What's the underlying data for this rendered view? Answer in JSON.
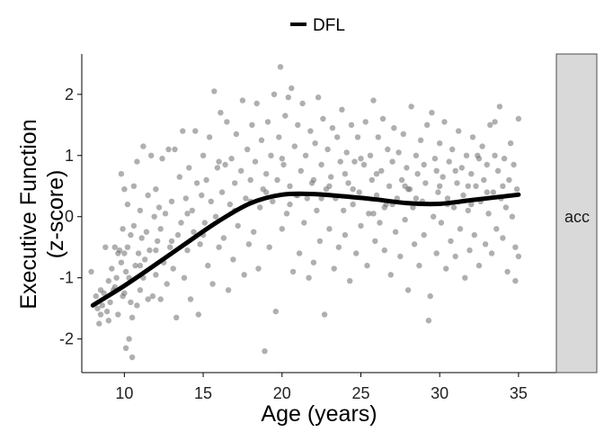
{
  "chart_data": {
    "type": "scatter",
    "xlabel": "Age (years)",
    "ylabel": [
      "Executive Function",
      "(z-score)"
    ],
    "xlim": [
      7.3,
      37.4
    ],
    "ylim": [
      -2.55,
      2.66
    ],
    "x_ticks": [
      10,
      15,
      20,
      25,
      30,
      35
    ],
    "y_ticks": [
      -2,
      -1,
      0,
      1,
      2
    ],
    "grid": false,
    "legend": {
      "position": "top",
      "entries": [
        {
          "name": "DFL",
          "color": "#000000"
        }
      ]
    },
    "facet_label": "acc",
    "colors": {
      "points": "#6e6e6e",
      "fit_line": "#000000",
      "strip_fill": "#d9d9d9",
      "strip_border": "#4d4d4d"
    },
    "fit_line": {
      "name": "DFL",
      "x": [
        8,
        10,
        12,
        14,
        16,
        18,
        20,
        22,
        24,
        26,
        28,
        30,
        32,
        35
      ],
      "y": [
        -1.45,
        -1.13,
        -0.78,
        -0.42,
        -0.07,
        0.22,
        0.36,
        0.37,
        0.33,
        0.28,
        0.22,
        0.21,
        0.27,
        0.36
      ]
    },
    "points": [
      [
        7.9,
        -0.9
      ],
      [
        8.2,
        -1.3
      ],
      [
        8.3,
        -1.5
      ],
      [
        8.4,
        -1.75
      ],
      [
        8.5,
        -1.6
      ],
      [
        8.5,
        -1.2
      ],
      [
        8.6,
        -1.45
      ],
      [
        8.7,
        -1.25
      ],
      [
        8.8,
        -0.5
      ],
      [
        8.9,
        -1.55
      ],
      [
        9.0,
        -1.7
      ],
      [
        9.1,
        -1.4
      ],
      [
        9.2,
        -0.85
      ],
      [
        9.3,
        -1.2
      ],
      [
        9.4,
        -1.15
      ],
      [
        9.4,
        -0.5
      ],
      [
        9.5,
        -1.0
      ],
      [
        9.6,
        -0.6
      ],
      [
        9.6,
        -1.6
      ],
      [
        9.7,
        -0.55
      ],
      [
        9.8,
        0.7
      ],
      [
        9.8,
        -0.75
      ],
      [
        9.9,
        -1.3
      ],
      [
        9.9,
        -0.2
      ],
      [
        10.0,
        0.45
      ],
      [
        10.0,
        -0.6
      ],
      [
        10.1,
        -0.9
      ],
      [
        10.1,
        -2.15
      ],
      [
        10.2,
        0.2
      ],
      [
        10.2,
        -0.5
      ],
      [
        10.3,
        -1.0
      ],
      [
        10.3,
        -2.0
      ],
      [
        10.4,
        -1.4
      ],
      [
        10.4,
        -0.3
      ],
      [
        10.5,
        -2.3
      ],
      [
        10.5,
        -1.65
      ],
      [
        10.6,
        0.5
      ],
      [
        10.6,
        -0.15
      ],
      [
        10.7,
        -0.8
      ],
      [
        10.8,
        -1.45
      ],
      [
        10.8,
        0.9
      ],
      [
        10.9,
        -0.6
      ],
      [
        11.0,
        0.1
      ],
      [
        11.0,
        -1.2
      ],
      [
        11.1,
        -0.35
      ],
      [
        11.2,
        -1.0
      ],
      [
        11.2,
        1.15
      ],
      [
        11.3,
        -0.7
      ],
      [
        11.4,
        -0.25
      ],
      [
        11.5,
        0.35
      ],
      [
        11.5,
        -1.35
      ],
      [
        11.6,
        -0.55
      ],
      [
        11.7,
        1.0
      ],
      [
        11.8,
        -1.3
      ],
      [
        11.9,
        0.0
      ],
      [
        12.0,
        0.45
      ],
      [
        12.0,
        -0.95
      ],
      [
        12.1,
        -0.4
      ],
      [
        12.2,
        0.15
      ],
      [
        12.3,
        -1.35
      ],
      [
        12.3,
        -0.2
      ],
      [
        12.4,
        0.95
      ],
      [
        12.5,
        -0.75
      ],
      [
        12.6,
        0.05
      ],
      [
        12.7,
        -1.1
      ],
      [
        12.8,
        1.1
      ],
      [
        12.9,
        -0.5
      ],
      [
        13.0,
        0.25
      ],
      [
        13.1,
        -0.85
      ],
      [
        13.2,
        1.1
      ],
      [
        13.3,
        -1.65
      ],
      [
        13.4,
        -0.3
      ],
      [
        13.5,
        0.65
      ],
      [
        13.6,
        -0.1
      ],
      [
        13.7,
        1.4
      ],
      [
        13.8,
        -1.0
      ],
      [
        13.9,
        0.3
      ],
      [
        14.0,
        -0.55
      ],
      [
        14.1,
        0.8
      ],
      [
        14.2,
        -1.35
      ],
      [
        14.3,
        0.1
      ],
      [
        14.4,
        -0.25
      ],
      [
        14.5,
        1.4
      ],
      [
        14.6,
        0.55
      ],
      [
        14.7,
        -1.6
      ],
      [
        14.8,
        -0.45
      ],
      [
        14.9,
        0.35
      ],
      [
        15.0,
        1.0
      ],
      [
        15.1,
        -0.1
      ],
      [
        15.2,
        0.6
      ],
      [
        15.3,
        -0.8
      ],
      [
        15.4,
        1.3
      ],
      [
        15.5,
        0.25
      ],
      [
        15.6,
        -1.1
      ],
      [
        15.7,
        2.05
      ],
      [
        15.8,
        0.0
      ],
      [
        15.9,
        0.8
      ],
      [
        16.0,
        -0.5
      ],
      [
        16.1,
        1.7
      ],
      [
        16.2,
        0.4
      ],
      [
        16.3,
        -0.35
      ],
      [
        16.4,
        0.85
      ],
      [
        16.5,
        1.55
      ],
      [
        16.6,
        -1.2
      ],
      [
        16.7,
        0.2
      ],
      [
        16.8,
        0.95
      ],
      [
        16.9,
        -0.7
      ],
      [
        17.0,
        0.55
      ],
      [
        17.1,
        1.35
      ],
      [
        17.2,
        -0.15
      ],
      [
        17.4,
        0.75
      ],
      [
        17.5,
        1.9
      ],
      [
        17.6,
        -0.95
      ],
      [
        17.7,
        0.3
      ],
      [
        17.8,
        1.1
      ],
      [
        17.9,
        -0.45
      ],
      [
        18.0,
        0.6
      ],
      [
        18.1,
        1.5
      ],
      [
        18.2,
        -0.25
      ],
      [
        18.3,
        0.9
      ],
      [
        18.4,
        1.85
      ],
      [
        18.5,
        -0.85
      ],
      [
        18.6,
        0.15
      ],
      [
        18.7,
        1.25
      ],
      [
        18.8,
        0.45
      ],
      [
        18.9,
        -2.2
      ],
      [
        19.0,
        0.7
      ],
      [
        19.1,
        1.55
      ],
      [
        19.2,
        -0.5
      ],
      [
        19.3,
        1.0
      ],
      [
        19.4,
        0.25
      ],
      [
        19.5,
        2.0
      ],
      [
        19.6,
        -1.55
      ],
      [
        19.7,
        0.6
      ],
      [
        19.8,
        1.3
      ],
      [
        19.9,
        2.45
      ],
      [
        20.0,
        -0.2
      ],
      [
        20.1,
        0.85
      ],
      [
        20.2,
        1.65
      ],
      [
        20.3,
        0.05
      ],
      [
        20.4,
        1.95
      ],
      [
        20.5,
        0.5
      ],
      [
        20.6,
        2.1
      ],
      [
        20.7,
        -0.9
      ],
      [
        20.8,
        1.15
      ],
      [
        20.9,
        0.35
      ],
      [
        21.0,
        1.5
      ],
      [
        21.1,
        -0.6
      ],
      [
        21.2,
        0.75
      ],
      [
        21.3,
        1.85
      ],
      [
        21.4,
        -0.1
      ],
      [
        21.5,
        1.0
      ],
      [
        21.6,
        0.3
      ],
      [
        21.7,
        -1.0
      ],
      [
        21.8,
        1.4
      ],
      [
        21.9,
        0.55
      ],
      [
        22.0,
        -0.75
      ],
      [
        22.1,
        1.2
      ],
      [
        22.2,
        0.1
      ],
      [
        22.3,
        1.95
      ],
      [
        22.4,
        -0.4
      ],
      [
        22.5,
        0.85
      ],
      [
        22.6,
        1.6
      ],
      [
        22.7,
        -1.6
      ],
      [
        22.8,
        0.45
      ],
      [
        22.9,
        1.1
      ],
      [
        23.0,
        -0.2
      ],
      [
        23.1,
        0.65
      ],
      [
        23.2,
        1.45
      ],
      [
        23.3,
        -0.85
      ],
      [
        23.4,
        0.3
      ],
      [
        23.5,
        1.3
      ],
      [
        23.6,
        -0.5
      ],
      [
        23.7,
        0.9
      ],
      [
        23.8,
        1.75
      ],
      [
        23.9,
        0.1
      ],
      [
        24.0,
        -0.3
      ],
      [
        24.1,
        1.05
      ],
      [
        24.2,
        0.55
      ],
      [
        24.3,
        -1.05
      ],
      [
        24.4,
        1.5
      ],
      [
        24.5,
        0.2
      ],
      [
        24.6,
        0.9
      ],
      [
        24.7,
        -0.6
      ],
      [
        24.8,
        1.3
      ],
      [
        24.9,
        0.4
      ],
      [
        25.0,
        -0.15
      ],
      [
        25.2,
        0.85
      ],
      [
        25.3,
        1.55
      ],
      [
        25.4,
        -0.8
      ],
      [
        25.5,
        0.05
      ],
      [
        25.6,
        1.0
      ],
      [
        25.7,
        0.6
      ],
      [
        25.8,
        1.9
      ],
      [
        25.9,
        -0.4
      ],
      [
        26.0,
        0.35
      ],
      [
        26.1,
        1.3
      ],
      [
        26.2,
        -0.1
      ],
      [
        26.3,
        0.75
      ],
      [
        26.4,
        1.6
      ],
      [
        26.5,
        -0.55
      ],
      [
        26.6,
        0.2
      ],
      [
        26.7,
        1.1
      ],
      [
        26.8,
        0.5
      ],
      [
        26.9,
        -0.95
      ],
      [
        27.0,
        0.9
      ],
      [
        27.1,
        1.45
      ],
      [
        27.2,
        -0.25
      ],
      [
        27.3,
        0.3
      ],
      [
        27.4,
        1.05
      ],
      [
        27.5,
        -0.65
      ],
      [
        27.6,
        0.6
      ],
      [
        27.7,
        1.35
      ],
      [
        27.8,
        -0.05
      ],
      [
        27.9,
        0.8
      ],
      [
        28.0,
        -1.2
      ],
      [
        28.1,
        0.45
      ],
      [
        28.2,
        1.8
      ],
      [
        28.3,
        0.15
      ],
      [
        28.4,
        -0.45
      ],
      [
        28.5,
        1.0
      ],
      [
        28.6,
        0.7
      ],
      [
        28.7,
        -0.8
      ],
      [
        28.8,
        1.25
      ],
      [
        28.9,
        0.25
      ],
      [
        29.0,
        -0.3
      ],
      [
        29.1,
        0.55
      ],
      [
        29.2,
        1.5
      ],
      [
        29.3,
        -1.7
      ],
      [
        29.4,
        -1.3
      ],
      [
        29.5,
        1.7
      ],
      [
        29.6,
        0.0
      ],
      [
        29.7,
        0.95
      ],
      [
        29.8,
        -0.6
      ],
      [
        29.9,
        0.4
      ],
      [
        30.0,
        1.2
      ],
      [
        30.1,
        -0.1
      ],
      [
        30.2,
        0.65
      ],
      [
        30.3,
        1.55
      ],
      [
        30.4,
        -0.85
      ],
      [
        30.5,
        0.3
      ],
      [
        30.6,
        0.9
      ],
      [
        30.7,
        -0.4
      ],
      [
        30.8,
        1.1
      ],
      [
        30.9,
        0.15
      ],
      [
        31.0,
        -0.65
      ],
      [
        31.1,
        0.55
      ],
      [
        31.2,
        1.4
      ],
      [
        31.3,
        -0.2
      ],
      [
        31.4,
        0.8
      ],
      [
        31.5,
        0.35
      ],
      [
        31.6,
        -1.0
      ],
      [
        31.7,
        1.0
      ],
      [
        31.8,
        0.1
      ],
      [
        31.9,
        -0.55
      ],
      [
        32.0,
        0.7
      ],
      [
        32.1,
        1.3
      ],
      [
        32.2,
        -0.3
      ],
      [
        32.3,
        0.5
      ],
      [
        32.4,
        1.0
      ],
      [
        32.5,
        -0.8
      ],
      [
        32.6,
        0.25
      ],
      [
        32.7,
        1.15
      ],
      [
        32.8,
        0.6
      ],
      [
        32.9,
        -0.45
      ],
      [
        33.0,
        0.85
      ],
      [
        33.1,
        0.05
      ],
      [
        33.2,
        1.5
      ],
      [
        33.3,
        -0.6
      ],
      [
        33.4,
        0.4
      ],
      [
        33.5,
        1.0
      ],
      [
        33.6,
        -0.2
      ],
      [
        33.7,
        0.75
      ],
      [
        33.8,
        1.8
      ],
      [
        33.9,
        0.3
      ],
      [
        34.0,
        -0.35
      ],
      [
        34.1,
        0.95
      ],
      [
        34.2,
        0.15
      ],
      [
        34.3,
        -0.9
      ],
      [
        34.4,
        0.6
      ],
      [
        34.5,
        1.2
      ],
      [
        34.6,
        0.0
      ],
      [
        34.7,
        0.85
      ],
      [
        34.8,
        -0.5
      ],
      [
        34.9,
        0.45
      ],
      [
        35.0,
        1.6
      ],
      [
        35.0,
        -0.65
      ],
      [
        34.8,
        -1.05
      ],
      [
        33.5,
        1.55
      ],
      [
        32.5,
        0.95
      ],
      [
        31.0,
        0.75
      ],
      [
        30.0,
        0.5
      ],
      [
        29.0,
        0.85
      ],
      [
        28.0,
        0.45
      ],
      [
        27.0,
        0.2
      ],
      [
        26.0,
        0.7
      ],
      [
        25.0,
        0.95
      ],
      [
        24.0,
        0.7
      ],
      [
        23.0,
        0.5
      ],
      [
        22.0,
        0.6
      ],
      [
        21.0,
        0.35
      ],
      [
        20.0,
        0.95
      ],
      [
        19.0,
        0.4
      ],
      [
        18.0,
        0.25
      ],
      [
        17.0,
        0.1
      ],
      [
        16.0,
        0.9
      ],
      [
        15.0,
        -0.3
      ],
      [
        14.0,
        0.05
      ],
      [
        13.0,
        -0.4
      ],
      [
        12.0,
        -0.55
      ],
      [
        11.0,
        -0.8
      ],
      [
        10.0,
        -1.25
      ],
      [
        9.0,
        -1.05
      ],
      [
        20.5,
        0.2
      ],
      [
        22.5,
        0.3
      ],
      [
        24.5,
        0.45
      ],
      [
        26.5,
        0.15
      ],
      [
        28.5,
        0.3
      ],
      [
        30.5,
        0.2
      ],
      [
        32.0,
        0.2
      ],
      [
        33.0,
        0.4
      ],
      [
        34.0,
        0.5
      ],
      [
        25.8,
        0.05
      ],
      [
        27.8,
        0.5
      ],
      [
        29.8,
        0.75
      ],
      [
        31.8,
        0.5
      ]
    ]
  }
}
